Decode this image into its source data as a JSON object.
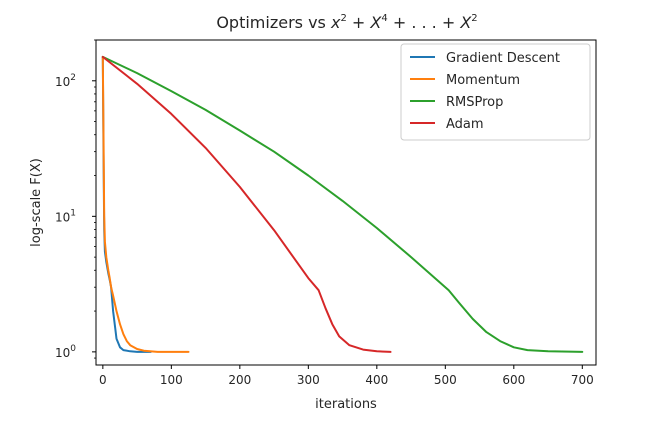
{
  "chart_data": {
    "type": "line",
    "title_parts": {
      "prefix": "Optimizers vs ",
      "t1": "x",
      "e1": "2",
      "op1": " + ",
      "t2": "X",
      "e2": "4",
      "op2": " + . . . + ",
      "t3": "X",
      "e3": "2"
    },
    "xlabel": "iterations",
    "ylabel": "log-scale F(X)",
    "yscale": "log",
    "xlim": [
      -10,
      720
    ],
    "ylim": [
      0.8,
      200
    ],
    "xticks": [
      0,
      100,
      200,
      300,
      400,
      500,
      600,
      700
    ],
    "yticks": [
      {
        "value": 1,
        "base": "10",
        "exp": "0"
      },
      {
        "value": 10,
        "base": "10",
        "exp": "1"
      },
      {
        "value": 100,
        "base": "10",
        "exp": "2"
      }
    ],
    "legend_position": "top-right",
    "grid": false,
    "series": [
      {
        "name": "Gradient Descent",
        "color": "#1f77b4",
        "x": [
          0,
          1,
          2,
          3,
          5,
          8,
          10,
          12,
          15,
          18,
          20,
          25,
          30,
          40,
          50,
          60,
          70
        ],
        "y": [
          150,
          30,
          8,
          5.5,
          4.6,
          3.8,
          3.4,
          3.0,
          2.0,
          1.5,
          1.25,
          1.08,
          1.03,
          1.01,
          1.0,
          1.0,
          1.0
        ]
      },
      {
        "name": "Momentum",
        "color": "#ff7f0e",
        "x": [
          0,
          1,
          2,
          3,
          5,
          8,
          10,
          12,
          15,
          20,
          25,
          30,
          35,
          40,
          50,
          60,
          80,
          100,
          125
        ],
        "y": [
          150,
          40,
          10,
          6.5,
          5.0,
          4.0,
          3.5,
          3.0,
          2.6,
          2.0,
          1.6,
          1.35,
          1.2,
          1.12,
          1.05,
          1.02,
          1.0,
          1.0,
          1.0
        ]
      },
      {
        "name": "RMSProp",
        "color": "#2ca02c",
        "x": [
          0,
          50,
          100,
          150,
          200,
          250,
          300,
          350,
          400,
          450,
          505,
          520,
          540,
          560,
          580,
          600,
          620,
          650,
          700
        ],
        "y": [
          150,
          114,
          84,
          61,
          43,
          30,
          20,
          13,
          8.2,
          5.0,
          2.85,
          2.3,
          1.75,
          1.4,
          1.2,
          1.08,
          1.03,
          1.01,
          1.0
        ]
      },
      {
        "name": "Adam",
        "color": "#d62728",
        "x": [
          0,
          50,
          100,
          150,
          200,
          250,
          300,
          315,
          325,
          335,
          345,
          360,
          380,
          400,
          420
        ],
        "y": [
          150,
          95,
          57,
          32,
          16.5,
          7.9,
          3.5,
          2.85,
          2.1,
          1.6,
          1.3,
          1.12,
          1.04,
          1.01,
          1.0
        ]
      }
    ]
  }
}
